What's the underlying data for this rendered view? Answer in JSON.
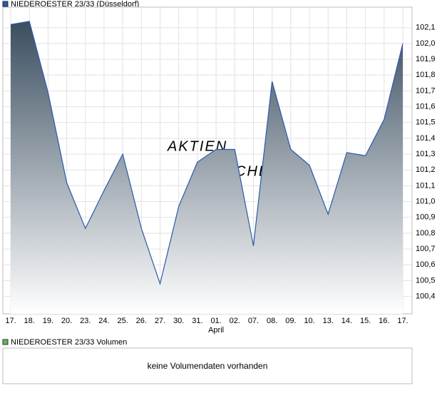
{
  "chart_data": {
    "type": "area",
    "legend_title": "NIEDEROESTER 23/33 (Düsseldorf)",
    "watermark": [
      "AKTIEN",
      "CHECK"
    ],
    "categories": [
      "17.",
      "18.",
      "19.",
      "20.",
      "23.",
      "24.",
      "25.",
      "26.",
      "27.",
      "30.",
      "31.",
      "01.",
      "02.",
      "07.",
      "08.",
      "09.",
      "10.",
      "13.",
      "14.",
      "15.",
      "16.",
      "17."
    ],
    "month_label": "April",
    "series": [
      {
        "name": "NIEDEROESTER 23/33 (Düsseldorf)",
        "color": "#2a5aa8",
        "values": [
          102.12,
          102.14,
          101.69,
          101.12,
          100.83,
          101.07,
          101.3,
          100.83,
          100.48,
          100.97,
          101.25,
          101.33,
          101.33,
          100.72,
          101.76,
          101.33,
          101.23,
          100.92,
          101.31,
          101.29,
          101.52,
          102.0
        ]
      }
    ],
    "ylim": [
      100.29,
      102.23
    ],
    "yticks": [
      {
        "value": 100.4,
        "label": "100,4"
      },
      {
        "value": 100.5,
        "label": "100,5"
      },
      {
        "value": 100.6,
        "label": "100,6"
      },
      {
        "value": 100.7,
        "label": "100,7"
      },
      {
        "value": 100.8,
        "label": "100,8"
      },
      {
        "value": 100.9,
        "label": "100,9"
      },
      {
        "value": 101.0,
        "label": "101,0"
      },
      {
        "value": 101.1,
        "label": "101,1"
      },
      {
        "value": 101.2,
        "label": "101,2"
      },
      {
        "value": 101.3,
        "label": "101,3"
      },
      {
        "value": 101.4,
        "label": "101,4"
      },
      {
        "value": 101.5,
        "label": "101,5"
      },
      {
        "value": 101.6,
        "label": "101,6"
      },
      {
        "value": 101.7,
        "label": "101,7"
      },
      {
        "value": 101.8,
        "label": "101,8"
      },
      {
        "value": 101.9,
        "label": "101,9"
      },
      {
        "value": 102.0,
        "label": "102,0"
      },
      {
        "value": 102.1,
        "label": "102,1"
      }
    ],
    "grid": true,
    "volume": {
      "title": "NIEDEROESTER 23/33 Volumen",
      "color": "#5cb85c",
      "message": "keine Volumendaten vorhanden"
    }
  }
}
